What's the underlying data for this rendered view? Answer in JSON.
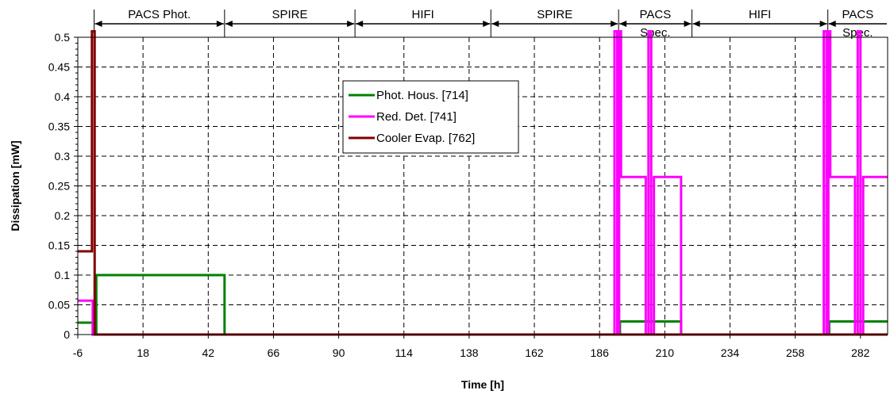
{
  "chart_data": {
    "type": "line",
    "title": "",
    "xlabel": "Time [h]",
    "ylabel": "Dissipation [mW]",
    "xlim": [
      -6,
      292
    ],
    "ylim": [
      0,
      0.5
    ],
    "xticks": [
      -6,
      18,
      42,
      66,
      90,
      114,
      138,
      162,
      186,
      210,
      234,
      258,
      282
    ],
    "xtick_labels": [
      "-6",
      "18",
      "42",
      "66",
      "90",
      "114",
      "138",
      "162",
      "186",
      "210",
      "234",
      "258",
      "282"
    ],
    "yticks": [
      0,
      0.05,
      0.1,
      0.15,
      0.2,
      0.25,
      0.3,
      0.35,
      0.4,
      0.45,
      0.5
    ],
    "ytick_labels": [
      "0",
      "0.05",
      "0.1",
      "0.15",
      "0.2",
      "0.25",
      "0.3",
      "0.35",
      "0.4",
      "0.45",
      "0.5"
    ],
    "grid": true,
    "legend_position": "upper-center",
    "phases": [
      {
        "label": "PACS Phot.",
        "start": 0,
        "end": 48
      },
      {
        "label": "SPIRE",
        "start": 48,
        "end": 96
      },
      {
        "label": "HIFI",
        "start": 96,
        "end": 146
      },
      {
        "label": "SPIRE",
        "start": 146,
        "end": 193
      },
      {
        "label": "PACS",
        "label2": "Spec.",
        "start": 193,
        "end": 220
      },
      {
        "label": "HIFI",
        "start": 220,
        "end": 270
      },
      {
        "label": "PACS",
        "label2": "Spec.",
        "start": 270,
        "end": 292
      }
    ],
    "series": [
      {
        "name": "Phot. Hous. [714]",
        "color": "#008000",
        "points": [
          [
            -6,
            0.02
          ],
          [
            -0.5,
            0.02
          ],
          [
            -0.5,
            0
          ],
          [
            0.8,
            0
          ],
          [
            0.8,
            0.1
          ],
          [
            48,
            0.1
          ],
          [
            48,
            0
          ],
          [
            193.5,
            0
          ],
          [
            193.5,
            0.022
          ],
          [
            216,
            0.022
          ],
          [
            216,
            0
          ],
          [
            270.5,
            0
          ],
          [
            270.5,
            0.022
          ],
          [
            292,
            0.022
          ]
        ]
      },
      {
        "name": "Red. Det.  [741]",
        "color": "#ff00ff",
        "points": [
          [
            -6,
            0.057
          ],
          [
            -0.5,
            0.057
          ],
          [
            -0.5,
            0
          ],
          [
            191.5,
            0
          ],
          [
            191.5,
            0.51
          ],
          [
            192.5,
            0.51
          ],
          [
            192.5,
            0
          ],
          [
            193.2,
            0
          ],
          [
            193.2,
            0.51
          ],
          [
            193.9,
            0.51
          ],
          [
            193.9,
            0.265
          ],
          [
            203,
            0.265
          ],
          [
            203,
            0
          ],
          [
            204,
            0
          ],
          [
            204,
            0.51
          ],
          [
            205,
            0.51
          ],
          [
            205,
            0
          ],
          [
            206,
            0
          ],
          [
            206,
            0.265
          ],
          [
            216,
            0.265
          ],
          [
            216,
            0
          ],
          [
            268.5,
            0
          ],
          [
            268.5,
            0.51
          ],
          [
            269.5,
            0.51
          ],
          [
            269.5,
            0
          ],
          [
            270.2,
            0
          ],
          [
            270.2,
            0.51
          ],
          [
            270.9,
            0.51
          ],
          [
            270.9,
            0.265
          ],
          [
            280,
            0.265
          ],
          [
            280,
            0
          ],
          [
            281,
            0
          ],
          [
            281,
            0.51
          ],
          [
            282,
            0.51
          ],
          [
            282,
            0
          ],
          [
            283,
            0
          ],
          [
            283,
            0.265
          ],
          [
            292,
            0.265
          ]
        ]
      },
      {
        "name": "Cooler Evap. [762]",
        "color": "#800000",
        "points": [
          [
            -6,
            0.14
          ],
          [
            -0.8,
            0.14
          ],
          [
            -0.8,
            0.51
          ],
          [
            0.2,
            0.51
          ],
          [
            0.2,
            0
          ],
          [
            292,
            0
          ]
        ]
      }
    ]
  }
}
